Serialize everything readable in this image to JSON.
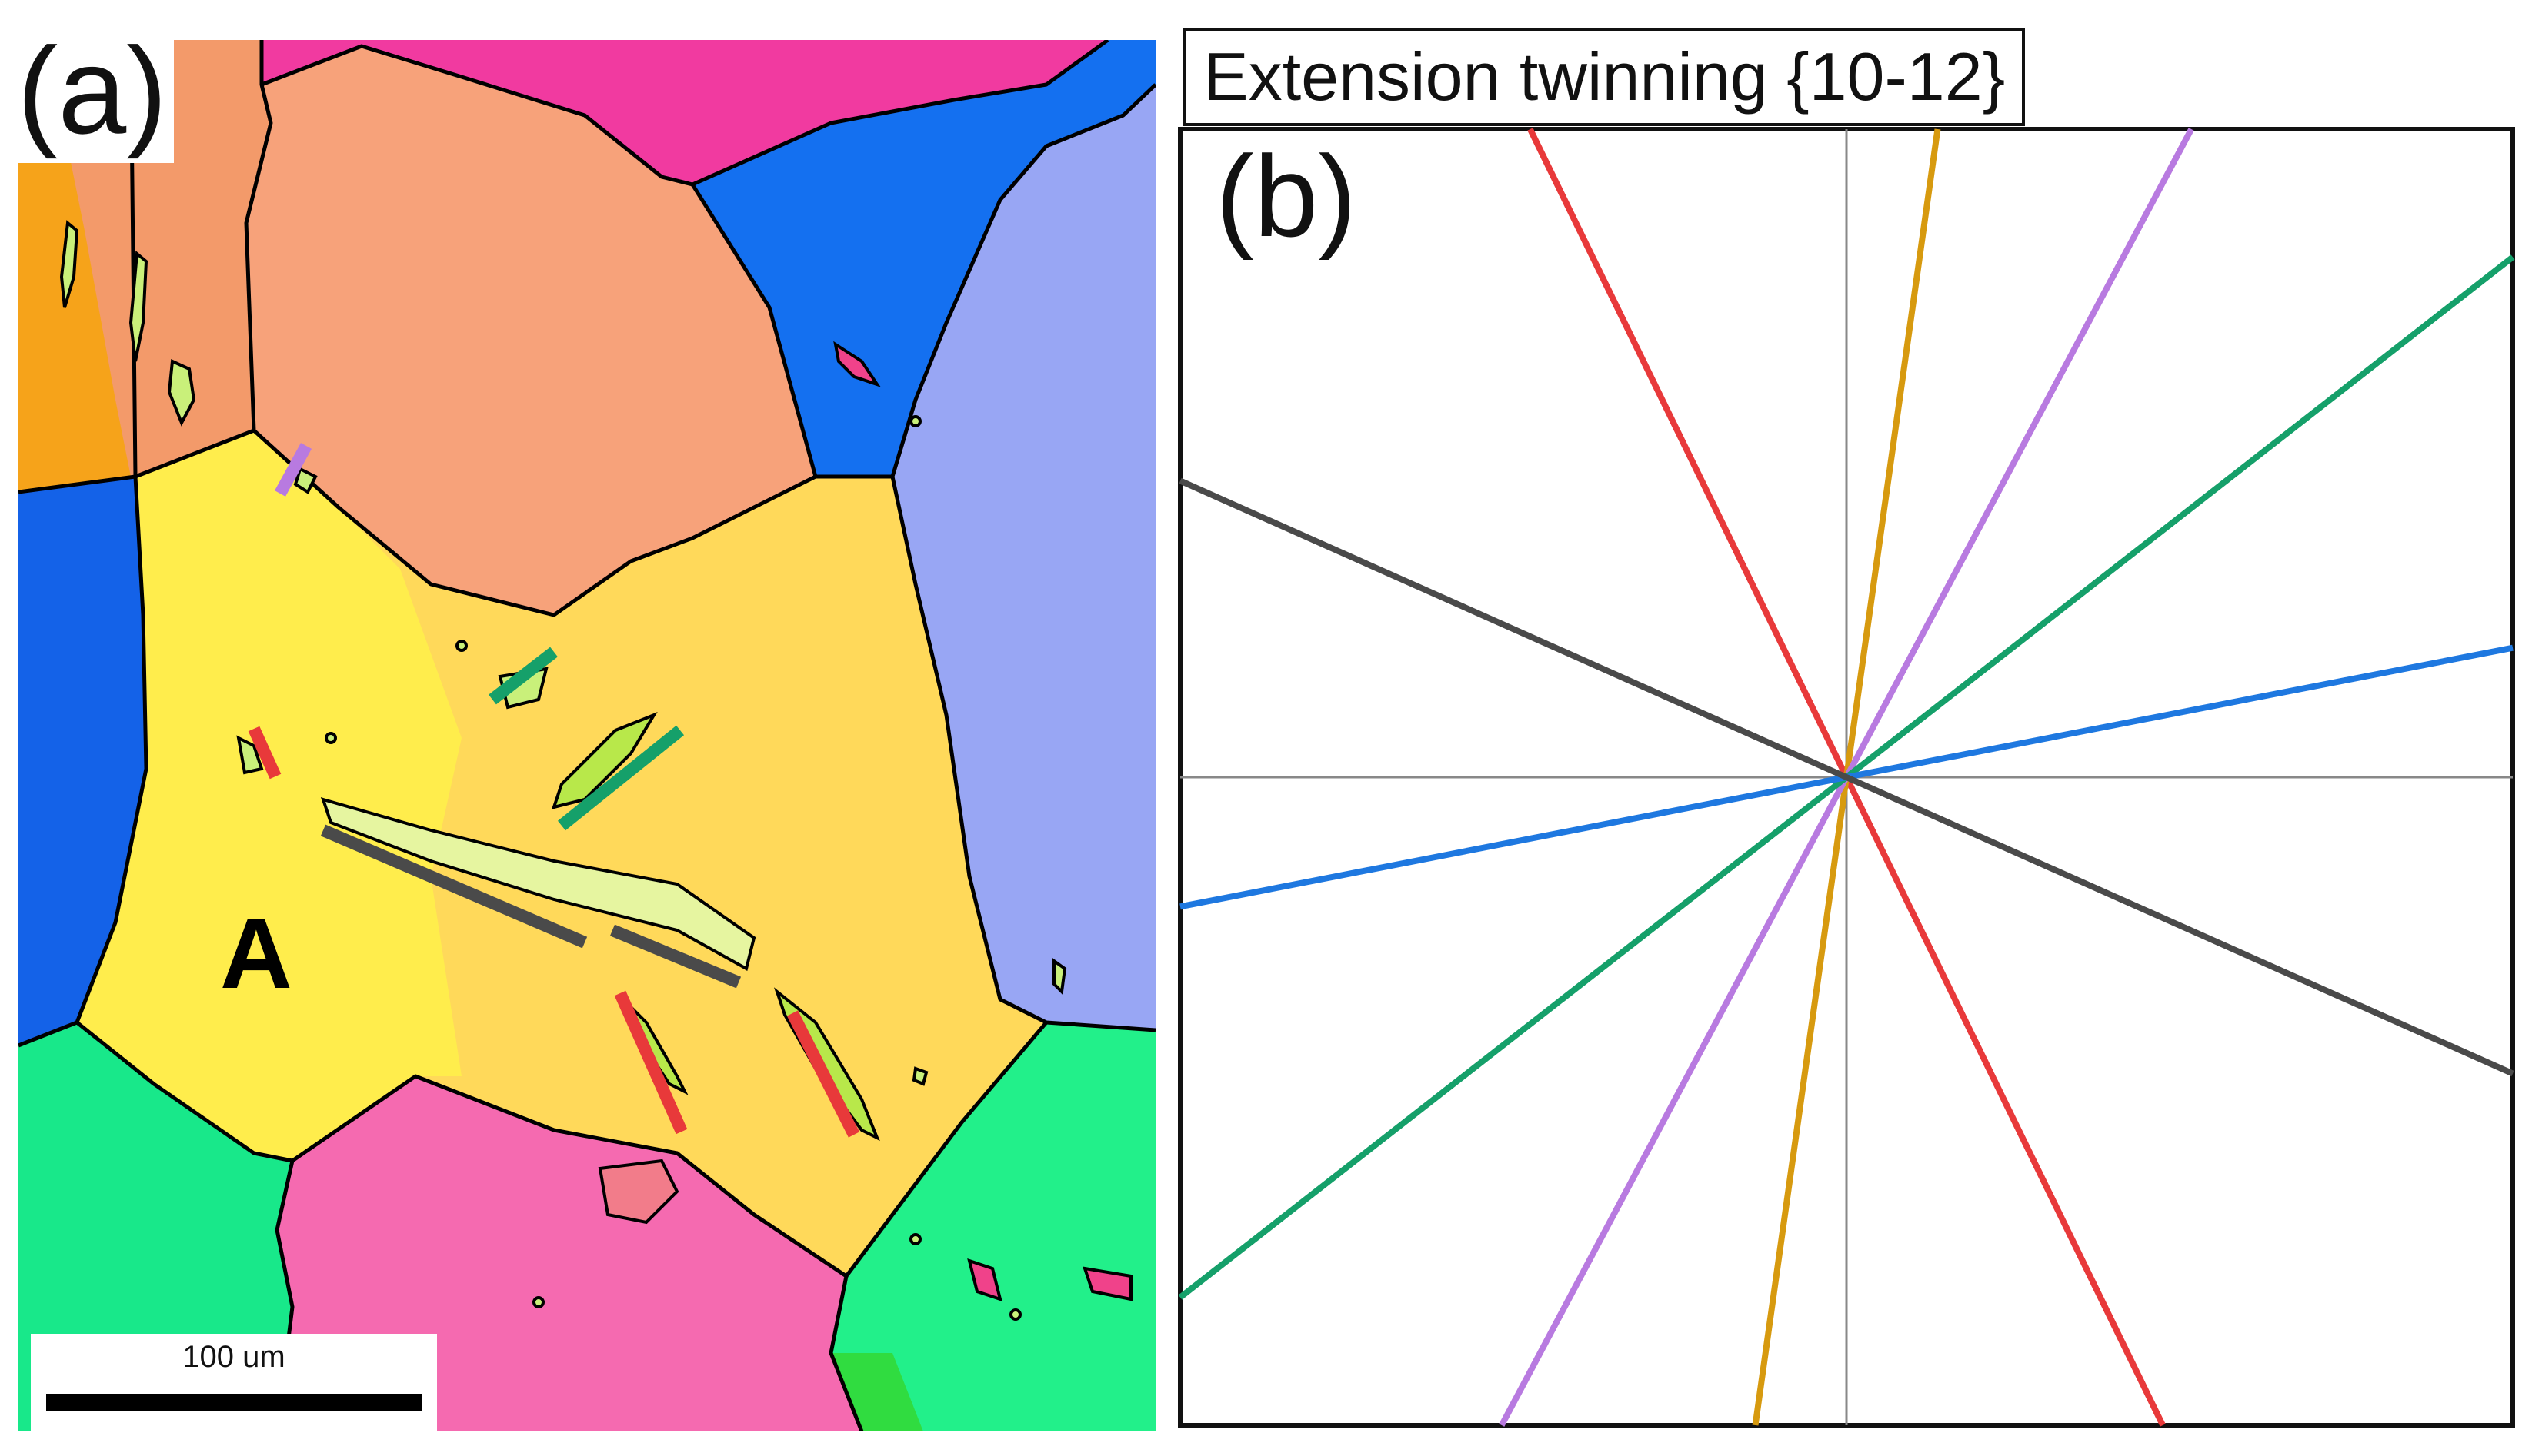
{
  "panel_a": {
    "label": "(a)",
    "grain_label": "A",
    "scale_bar_label": "100 um"
  },
  "panel_b": {
    "label": "(b)",
    "title": "Extension twinning {10-12}"
  },
  "chart_data": {
    "type": "line",
    "title": "Extension twinning {10-12}",
    "xlabel": "",
    "ylabel": "",
    "grid": false,
    "axes": "crosshair through center",
    "xlim": [
      -1,
      1
    ],
    "ylim": [
      -1,
      1
    ],
    "series": [
      {
        "color": "#e8393a",
        "angle_deg": 116
      },
      {
        "color": "#d79a0f",
        "angle_deg": 82
      },
      {
        "color": "#b87ae0",
        "angle_deg": 62
      },
      {
        "color": "#15a06a",
        "angle_deg": 38
      },
      {
        "color": "#1e78e0",
        "angle_deg": 11
      },
      {
        "color": "#4a4a4a",
        "angle_deg": 156
      }
    ]
  },
  "colors": {
    "boundary": "#000000",
    "twin_fill": "#c9f07a",
    "twin_red": "#e8393a",
    "twin_green": "#15a06a",
    "twin_gray": "#4a4a4a",
    "twin_purple": "#b87ae0"
  }
}
